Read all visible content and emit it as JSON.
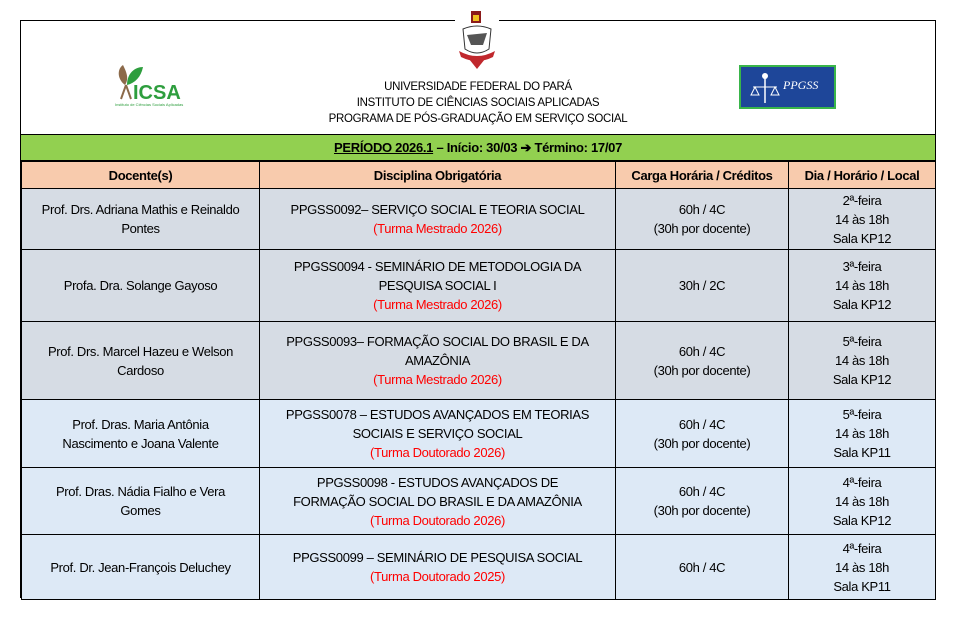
{
  "header": {
    "logos": {
      "left": "ICSA",
      "left_sub": "Instituto de Ciências Sociais Aplicadas",
      "right": "PPGSS"
    },
    "institution_lines": [
      "UNIVERSIDADE FEDERAL DO PARÁ",
      "INSTITUTO DE CIÊNCIAS SOCIAIS APLICADAS",
      "PROGRAMA DE PÓS-GRADUAÇÃO EM SERVIÇO SOCIAL"
    ]
  },
  "period": {
    "label": "PERÍODO 2026.1",
    "dash": "–",
    "start": "Início: 30/03",
    "arrow": "➔",
    "end": "Término: 17/07",
    "band_color": "#92d050"
  },
  "columns": [
    "Docente(s)",
    "Disciplina Obrigatória",
    "Carga Horária / Créditos",
    "Dia / Horário / Local"
  ],
  "rows": [
    {
      "docente": "Prof. Drs. Adriana Mathis e Reinaldo Pontes",
      "disciplina": "PPGSS0092– SERVIÇO SOCIAL E TEORIA SOCIAL",
      "turma": "(Turma Mestrado 2026)",
      "carga": "60h / 4C",
      "carga_note": "(30h por docente)",
      "dia": "2ª-feira",
      "horario": "14 às 18h",
      "local": "Sala KP12"
    },
    {
      "docente": "Profa. Dra. Solange Gayoso",
      "disciplina": "PPGSS0094 - SEMINÁRIO DE METODOLOGIA DA PESQUISA SOCIAL I",
      "turma": "(Turma Mestrado 2026)",
      "carga": "30h / 2C",
      "carga_note": "",
      "dia": "3ª-feira",
      "horario": "14 às 18h",
      "local": "Sala KP12"
    },
    {
      "docente": "Prof. Drs. Marcel Hazeu e Welson Cardoso",
      "disciplina": "PPGSS0093– FORMAÇÃO SOCIAL DO BRASIL E DA AMAZÔNIA",
      "turma": "(Turma Mestrado 2026)",
      "carga": "60h / 4C",
      "carga_note": "(30h por docente)",
      "dia": "5ª-feira",
      "horario": "14 às 18h",
      "local": "Sala KP12"
    },
    {
      "docente": "Prof. Dras. Maria Antônia Nascimento e Joana Valente",
      "disciplina": "PPGSS0078 – ESTUDOS AVANÇADOS EM TEORIAS SOCIAIS E SERVIÇO SOCIAL",
      "turma": "(Turma Doutorado 2026)",
      "carga": "60h / 4C",
      "carga_note": "(30h por docente)",
      "dia": "5ª-feira",
      "horario": "14 às 18h",
      "local": "Sala KP11"
    },
    {
      "docente": "Prof. Dras. Nádia Fialho e Vera Gomes",
      "disciplina": "PPGSS0098 - ESTUDOS AVANÇADOS DE FORMAÇÃO SOCIAL DO BRASIL E DA AMAZÔNIA",
      "turma": "(Turma Doutorado 2026)",
      "carga": "60h / 4C",
      "carga_note": "(30h por docente)",
      "dia": "4ª-feira",
      "horario": "14 às 18h",
      "local": "Sala KP12"
    },
    {
      "docente": "Prof. Dr. Jean-François Deluchey",
      "disciplina": "PPGSS0099 – SEMINÁRIO DE PESQUISA SOCIAL",
      "turma": "(Turma Doutorado 2025)",
      "carga": "60h / 4C",
      "carga_note": "",
      "dia": "4ª-feira",
      "horario": "14 às 18h",
      "local": "Sala KP11"
    }
  ]
}
